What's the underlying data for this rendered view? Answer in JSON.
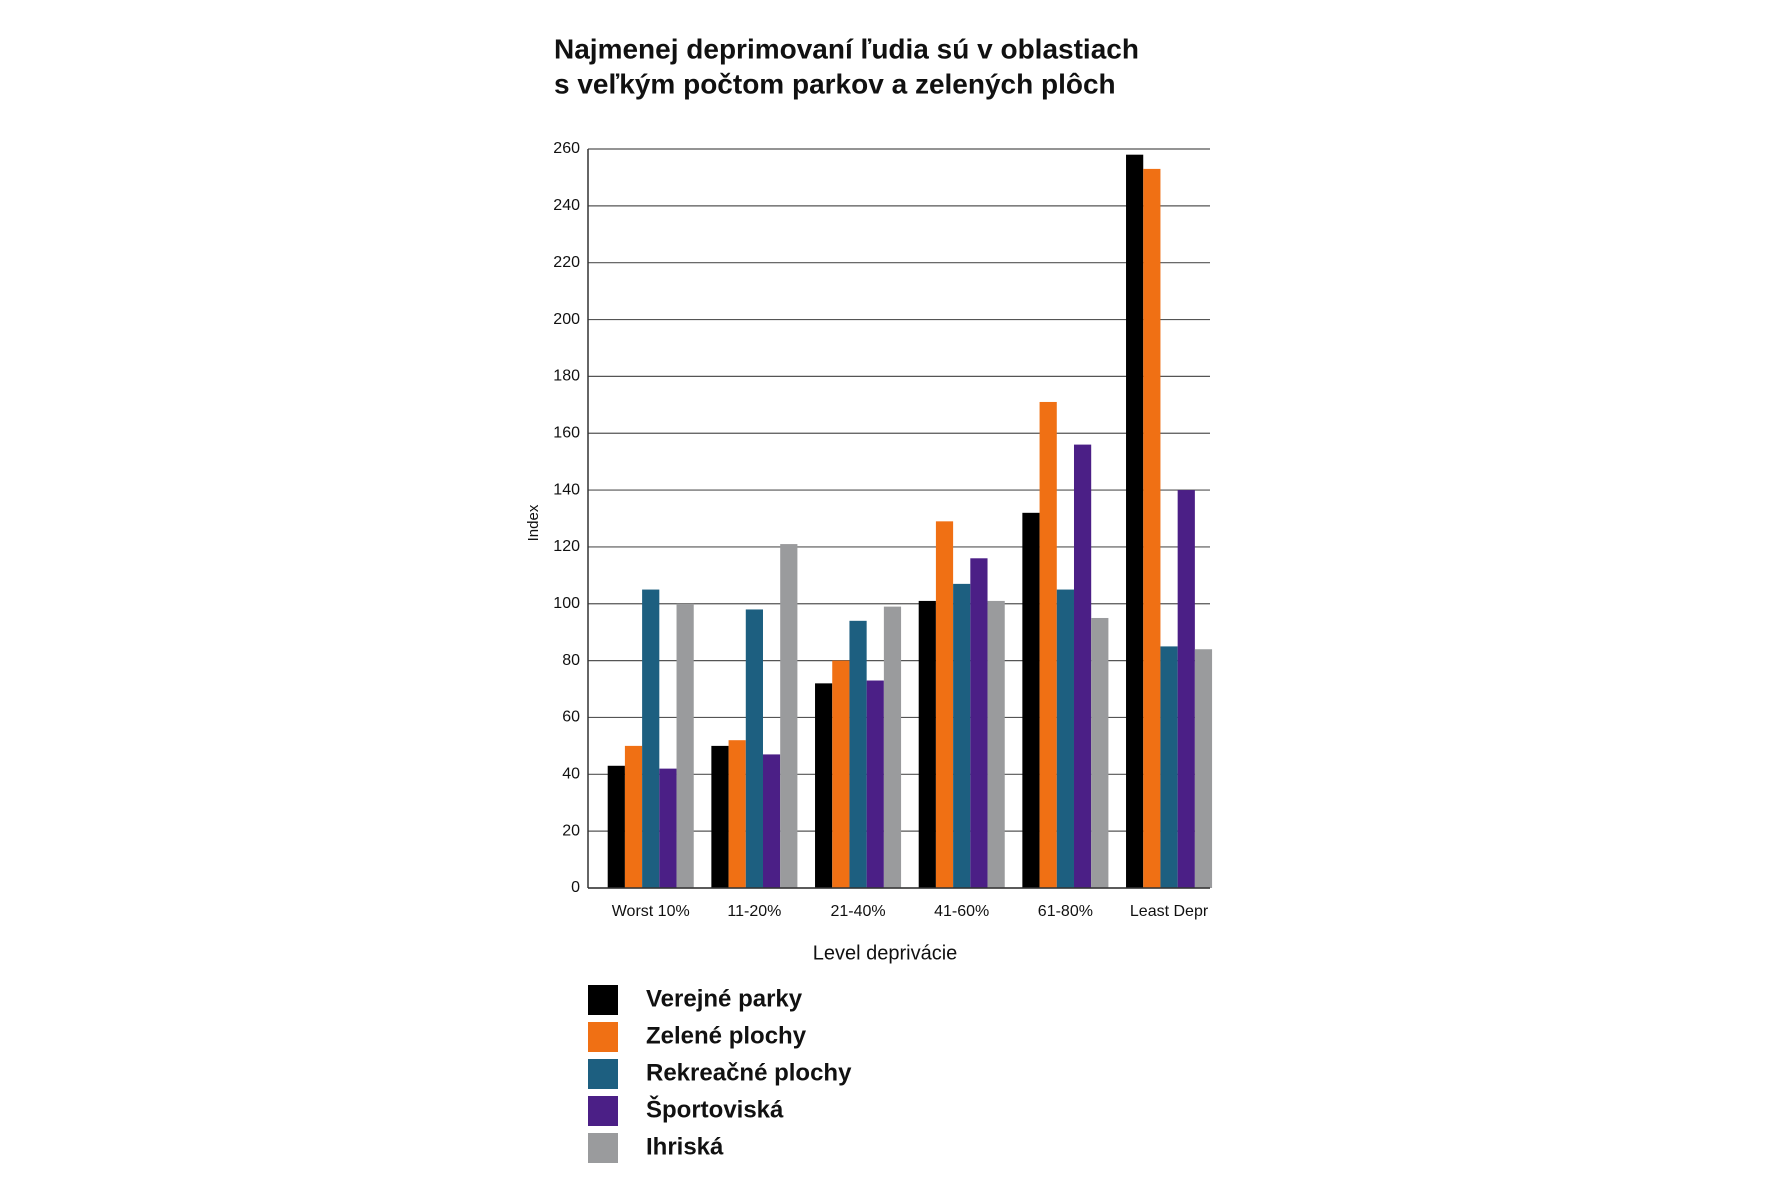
{
  "chart_data": {
    "type": "bar",
    "title": [
      "Najmenej deprimovaní ľudia sú v oblastiach",
      "s veľkým počtom parkov a zelených plôch"
    ],
    "x_label": "Level deprivácie",
    "y_label": "Index",
    "categories": [
      "Worst 10%",
      "11-20%",
      "21-40%",
      "41-60%",
      "61-80%",
      "Least Depr"
    ],
    "series": [
      {
        "name": "Verejné parky",
        "color": "#000000",
        "values": [
          43,
          50,
          72,
          101,
          132,
          258
        ]
      },
      {
        "name": "Zelené plochy",
        "color": "#f07014",
        "values": [
          50,
          52,
          80,
          129,
          171,
          253
        ]
      },
      {
        "name": "Rekreačné plochy",
        "color": "#1d5f80",
        "values": [
          105,
          98,
          94,
          107,
          105,
          85
        ]
      },
      {
        "name": "Športoviská",
        "color": "#4b1f86",
        "values": [
          42,
          47,
          73,
          116,
          156,
          140
        ]
      },
      {
        "name": "Ihriská",
        "color": "#9a9b9d",
        "values": [
          100,
          121,
          99,
          101,
          95,
          84
        ]
      }
    ],
    "ylim": [
      0,
      260
    ],
    "yticks": [
      0,
      20,
      40,
      60,
      80,
      100,
      120,
      140,
      160,
      180,
      200,
      220,
      240,
      260
    ],
    "grid": true
  }
}
